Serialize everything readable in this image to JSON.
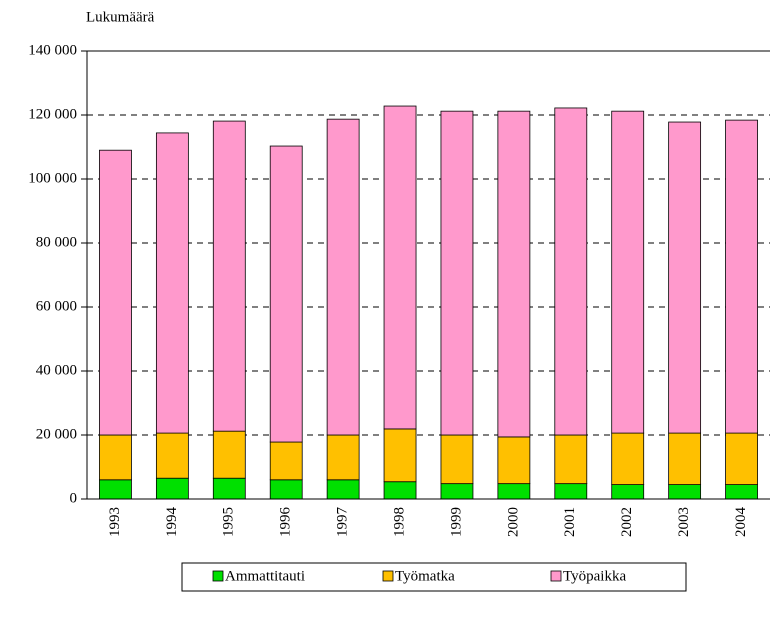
{
  "chart_data": {
    "type": "bar",
    "stacked": true,
    "y_label": "Lukumäärä",
    "categories": [
      "1993",
      "1994",
      "1995",
      "1996",
      "1997",
      "1998",
      "1999",
      "2000",
      "2001",
      "2002",
      "2003",
      "2004"
    ],
    "series": [
      {
        "name": "Ammattitauti",
        "color": "#00e000",
        "values": [
          6000,
          6500,
          6500,
          6000,
          6000,
          5400,
          4800,
          4800,
          4800,
          4500,
          4500,
          4500
        ]
      },
      {
        "name": "Työmatka",
        "color": "#ffc000",
        "values": [
          14000,
          14100,
          14700,
          11800,
          14000,
          16500,
          15200,
          14600,
          15200,
          16100,
          16100,
          16100
        ]
      },
      {
        "name": "Työpaikka",
        "color": "#ff99cc",
        "values": [
          89000,
          93800,
          96900,
          92500,
          98700,
          100900,
          101200,
          101800,
          102200,
          100600,
          97200,
          97800
        ]
      }
    ],
    "ylim": [
      0,
      140000
    ],
    "yticks": [
      0,
      {
        "value": 20000,
        "label": "20 000"
      },
      {
        "value": 40000,
        "label": "40 000"
      },
      {
        "value": 60000,
        "label": "60 000"
      },
      {
        "value": 80000,
        "label": "80 000"
      },
      {
        "value": 100000,
        "label": "100 000"
      },
      {
        "value": 120000,
        "label": "120 000"
      },
      {
        "value": 140000,
        "label": "140 000"
      }
    ],
    "grid": true,
    "legend": "bottom"
  }
}
